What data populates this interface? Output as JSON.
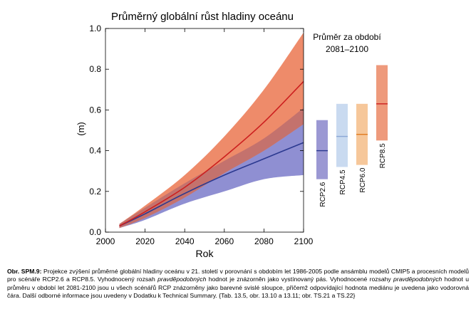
{
  "chart_data": {
    "type": "line",
    "title": "Průměrný globální růst hladiny oceánu",
    "xlabel": "Rok",
    "ylabel": "(m)",
    "xlim": [
      2000,
      2100
    ],
    "ylim": [
      0.0,
      1.0
    ],
    "x_ticks": [
      "2000",
      "2020",
      "2040",
      "2060",
      "2080",
      "2100"
    ],
    "y_ticks": [
      "0.0",
      "0.2",
      "0.4",
      "0.6",
      "0.8",
      "1.0"
    ],
    "x": [
      2007,
      2020,
      2040,
      2060,
      2080,
      2100
    ],
    "series": [
      {
        "name": "RCP2.6",
        "color": "#2b3990",
        "values": [
          0.03,
          0.09,
          0.19,
          0.28,
          0.36,
          0.44
        ],
        "lower": [
          0.02,
          0.06,
          0.14,
          0.2,
          0.26,
          0.28
        ],
        "upper": [
          0.04,
          0.12,
          0.24,
          0.35,
          0.46,
          0.61
        ]
      },
      {
        "name": "RCP8.5",
        "color": "#cc1f1f",
        "values": [
          0.03,
          0.1,
          0.22,
          0.37,
          0.54,
          0.74
        ],
        "lower": [
          0.02,
          0.07,
          0.17,
          0.29,
          0.4,
          0.53
        ],
        "upper": [
          0.04,
          0.13,
          0.28,
          0.47,
          0.7,
          0.98
        ]
      }
    ],
    "side_panel": {
      "title": "Průměr za období",
      "period": "2081–2100",
      "bars": [
        {
          "name": "RCP2.6",
          "low": 0.26,
          "high": 0.55,
          "median": 0.4,
          "fill": "#9b98d3",
          "line": "#2b3990"
        },
        {
          "name": "RCP4.5",
          "low": 0.32,
          "high": 0.63,
          "median": 0.47,
          "fill": "#c9daf0",
          "line": "#8aa6d6"
        },
        {
          "name": "RCP6.0",
          "low": 0.33,
          "high": 0.63,
          "median": 0.48,
          "fill": "#f6c79a",
          "line": "#e07a20"
        },
        {
          "name": "RCP8.5",
          "low": 0.45,
          "high": 0.82,
          "median": 0.63,
          "fill": "#ee9a7c",
          "line": "#cc1f1f"
        }
      ]
    }
  },
  "caption": {
    "label": "Obr. SPM.9:",
    "part1": " Projekce zvýšení průměrné globální hladiny oceánu v 21. století v porovnání s obdobím let 1986-2005 podle ansámblu modelů CMIP5 a procesních modelů pro scénáře RCP2.6 a RCP8.5. Vyhodnocený rozsah ",
    "italic1": "pravděpodobných",
    "part2": " hodnot je znázorněn jako vystínovaný pás. Vyhodnocené rozsahy ",
    "italic2": "pravděpodobných",
    "part3": " hodnot u průměru v období let 2081-2100 jsou u všech scénářů RCP znázorněny jako barevné svislé sloupce, přičemž odpovídající hodnota mediánu je uvedena jako vodorovná čára. Další odborné informace jsou uvedeny v Dodatku k Technical Summary. {Tab. 13.5, obr. 13.10 a 13.11; obr. TS.21 a TS.22}"
  },
  "colors": {
    "rcp26_band": "#8f8fd2",
    "rcp85_band": "#ee8b6a",
    "overlap_band": "#c4726d"
  }
}
